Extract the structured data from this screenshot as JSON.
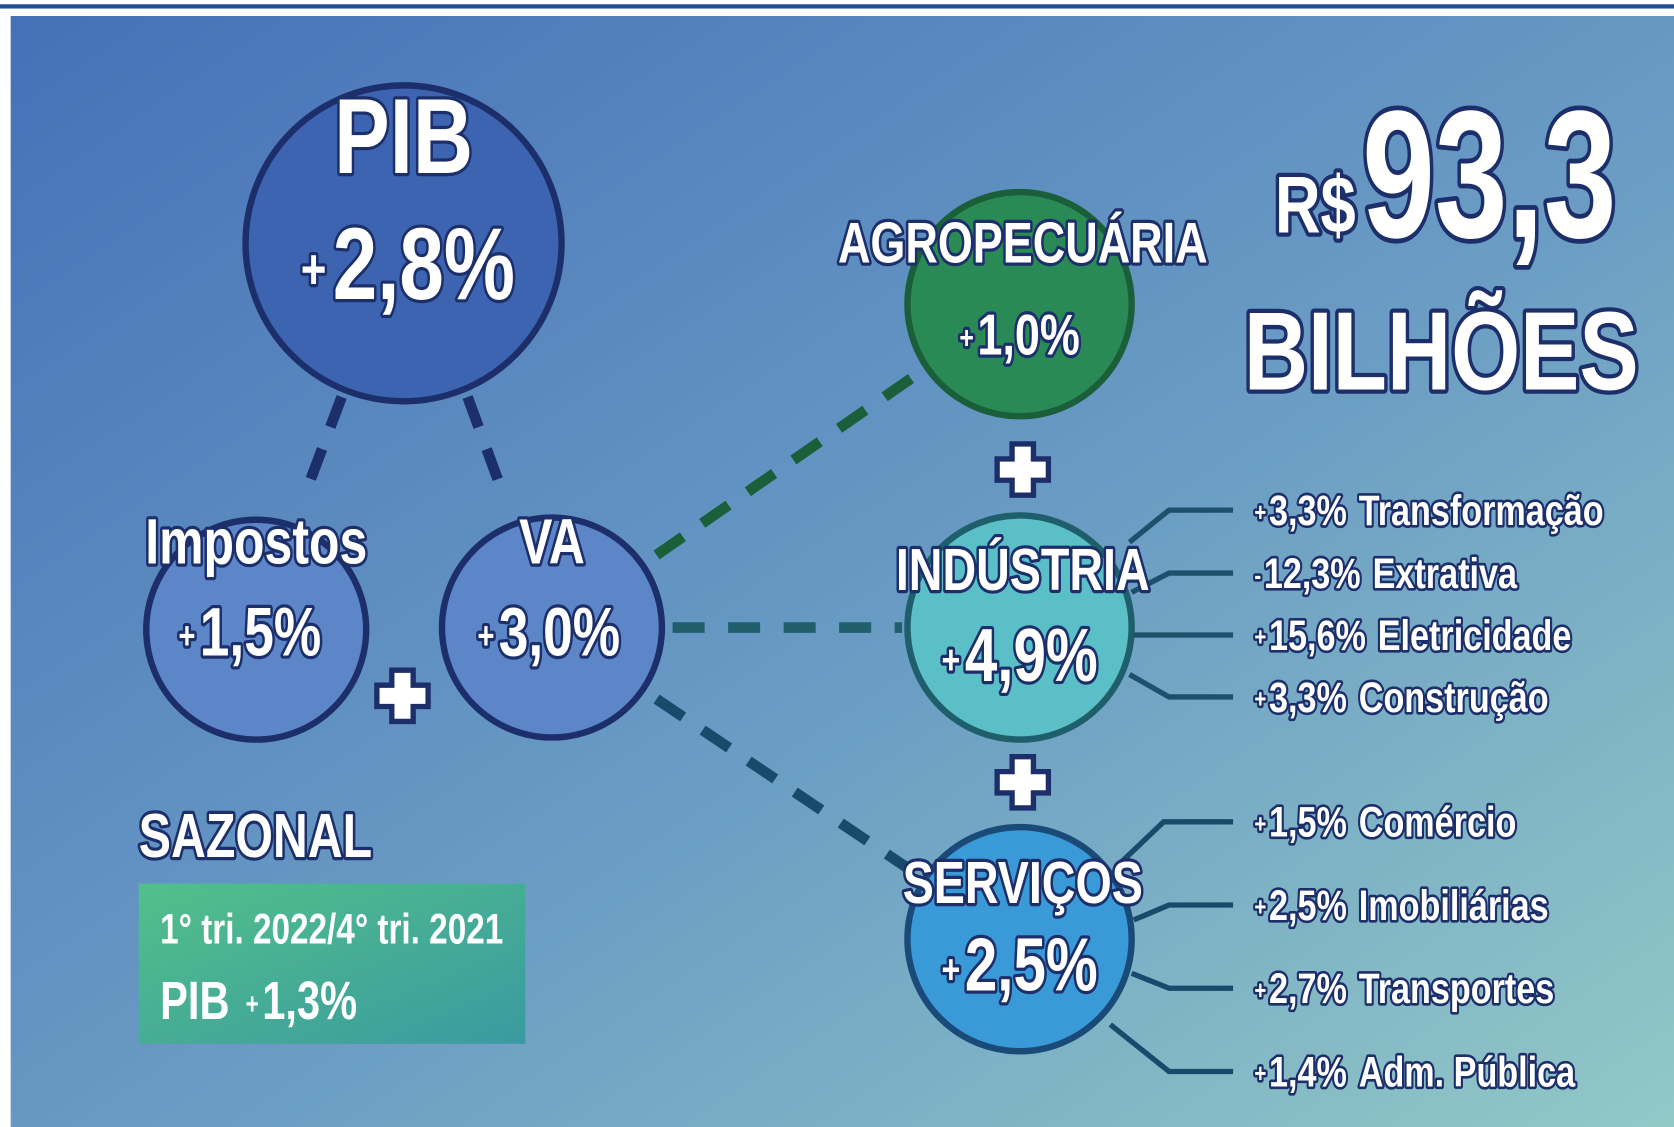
{
  "pib": {
    "label": "PIB",
    "sign": "+",
    "value": "2,8%"
  },
  "impostos": {
    "label": "Impostos",
    "sign": "+",
    "value": "1,5%"
  },
  "va": {
    "label": "VA",
    "sign": "+",
    "value": "3,0%"
  },
  "agropecuaria": {
    "label": "AGROPECUÁRIA",
    "sign": "+",
    "value": "1,0%"
  },
  "industria": {
    "label": "INDÚSTRIA",
    "sign": "+",
    "value": "4,9%",
    "items": [
      {
        "sign": "+",
        "value": "3,3%",
        "label": "Transformação"
      },
      {
        "sign": "-",
        "value": "12,3%",
        "label": "Extrativa"
      },
      {
        "sign": "+",
        "value": "15,6%",
        "label": "Eletricidade"
      },
      {
        "sign": "+",
        "value": "3,3%",
        "label": "Construção"
      }
    ]
  },
  "servicos": {
    "label": "SERVIÇOS",
    "sign": "+",
    "value": "2,5%",
    "items": [
      {
        "sign": "+",
        "value": "1,5%",
        "label": "Comércio"
      },
      {
        "sign": "+",
        "value": "2,5%",
        "label": "Imobiliárias"
      },
      {
        "sign": "+",
        "value": "2,7%",
        "label": "Transportes"
      },
      {
        "sign": "+",
        "value": "1,4%",
        "label": "Adm. Pública"
      }
    ]
  },
  "total": {
    "currency": "R$",
    "amount": "93,3",
    "unit": "BILHÕES"
  },
  "sazonal": {
    "title": "SAZONAL",
    "period": "1° tri. 2022/4° tri. 2021",
    "label": "PIB",
    "sign": "+",
    "value": "1,3%"
  }
}
